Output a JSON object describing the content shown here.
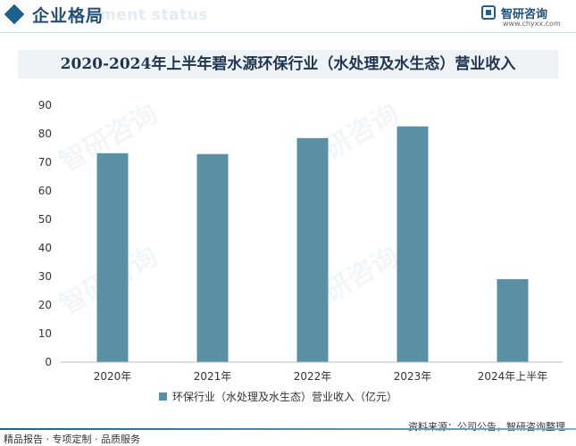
{
  "header": {
    "title": "企业格局",
    "subtitle": "ment status",
    "logo_name": "智研咨询",
    "logo_url": "www.chyxx.com",
    "logo_icon": "chart-logo-icon"
  },
  "chart_data": {
    "type": "bar",
    "title": "2020-2024年上半年碧水源环保行业（水处理及水生态）营业收入",
    "categories": [
      "2020年",
      "2021年",
      "2022年",
      "2023年",
      "2024年上半年"
    ],
    "series": [
      {
        "name": "环保行业（水处理及水生态）营业收入（亿元）",
        "values": [
          73.2,
          72.9,
          78.5,
          82.6,
          29.1
        ],
        "color": "#5b8fa5"
      }
    ],
    "ylim": [
      0,
      90
    ],
    "yticks": [
      0,
      10,
      20,
      30,
      40,
      50,
      60,
      70,
      80,
      90
    ],
    "xlabel": "",
    "ylabel": "",
    "grid": false,
    "legend": "bottom-center"
  },
  "watermark_text": "智研咨询",
  "source": "资料来源：公司公告，智研咨询整理",
  "footer": "精品报告 · 专项定制 · 品质服务"
}
